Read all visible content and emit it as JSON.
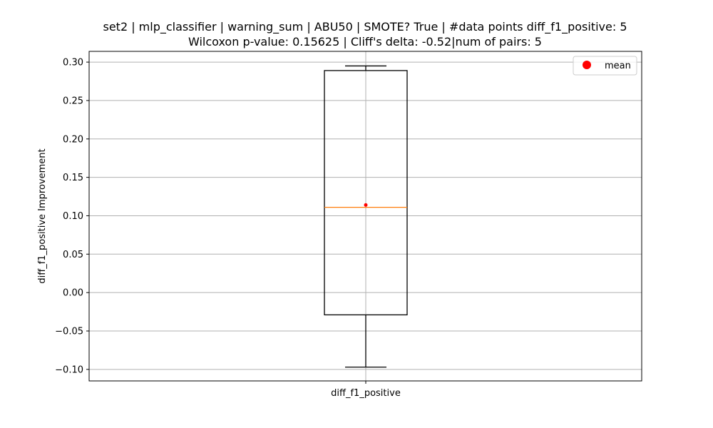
{
  "chart_data": {
    "type": "box",
    "title_line1": "set2 | mlp_classifier | warning_sum | ABU50 | SMOTE? True | #data points diff_f1_positive: 5",
    "title_line2": "Wilcoxon p-value: 0.15625 | Cliff's delta: -0.52|num of pairs: 5",
    "xlabel": "",
    "ylabel": "diff_f1_positive Improvement",
    "categories": [
      "diff_f1_positive"
    ],
    "ylim": [
      -0.115,
      0.314
    ],
    "yticks": [
      -0.1,
      -0.05,
      0.0,
      0.05,
      0.1,
      0.15,
      0.2,
      0.25,
      0.3
    ],
    "ytick_labels": [
      "−0.10",
      "−0.05",
      "0.00",
      "0.05",
      "0.10",
      "0.15",
      "0.20",
      "0.25",
      "0.30"
    ],
    "grid": true,
    "legend": {
      "entries": [
        "mean"
      ],
      "placement": "top-right"
    },
    "series": [
      {
        "category": "diff_f1_positive",
        "whisker_low": -0.097,
        "q1": -0.029,
        "median": 0.111,
        "q3": 0.289,
        "whisker_high": 0.295,
        "mean": 0.114
      }
    ],
    "colors": {
      "box": "#000000",
      "median": "#ff7f0e",
      "mean": "#ff0000",
      "grid": "#b0b0b0"
    }
  }
}
